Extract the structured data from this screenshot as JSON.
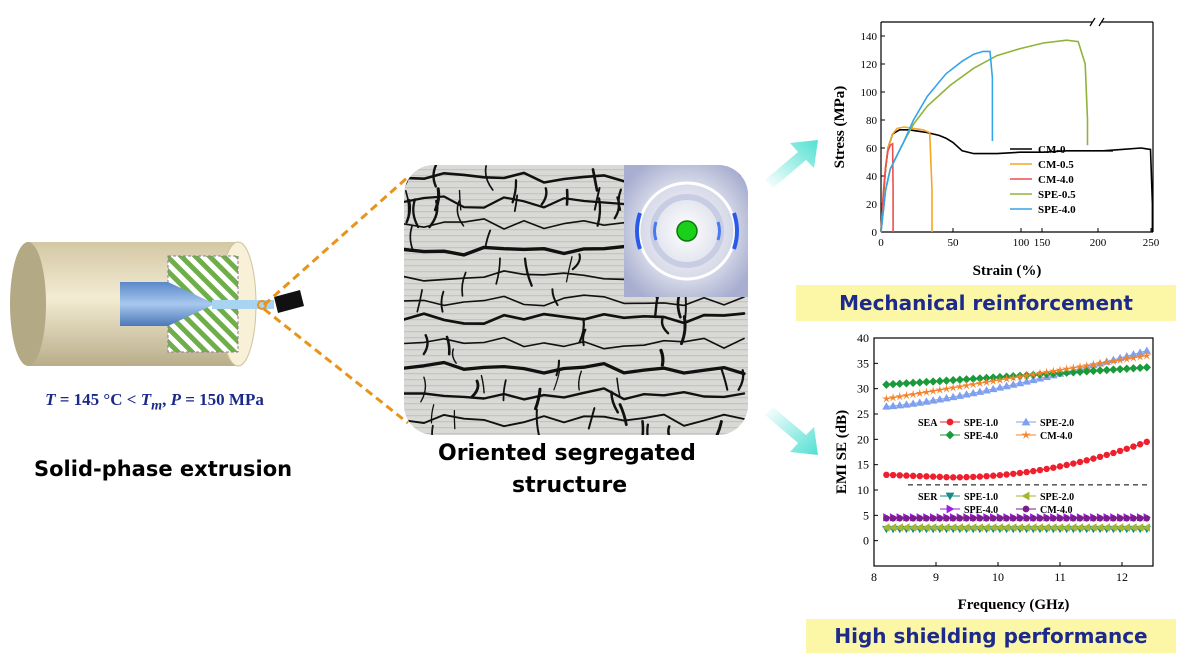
{
  "process": {
    "conditions": {
      "t_symbol": "T",
      "t_text": " = 145 °C < ",
      "tm_symbol": "T",
      "tm_sub": "m",
      "p_symbol": "P",
      "p_text": " = 150 MPa",
      "comma": ", "
    },
    "caption": "Solid-phase extrusion"
  },
  "structure": {
    "caption_line1": "Oriented segregated",
    "caption_line2": "structure"
  },
  "banners": {
    "mechanical": "Mechanical reinforcement",
    "shielding": "High shielding performance"
  },
  "colors": {
    "arrow": "#52e0d2",
    "dashed": "#e8941a",
    "banner_bg": "#fbf7a6",
    "banner_text": "#1d2a8c",
    "cond_text": "#1a2a8a"
  },
  "chart_data": [
    {
      "type": "line",
      "xlabel": "Strain (%)",
      "ylabel": "Stress (MPa)",
      "ylim": [
        0,
        150
      ],
      "xlim": [
        0,
        250
      ],
      "x_break": [
        50,
        200
      ],
      "xticks": [
        "0",
        "50",
        "100",
        "150",
        "200",
        "250"
      ],
      "yticks": [
        "0",
        "20",
        "40",
        "60",
        "80",
        "100",
        "120",
        "140"
      ],
      "legend_position": "bottom-right",
      "series": [
        {
          "name": "CM-0",
          "color": "#000000",
          "x": [
            0,
            1,
            2,
            3,
            5,
            8,
            12,
            16,
            20,
            25,
            28,
            31,
            35,
            40,
            50,
            60,
            70,
            80,
            90,
            95,
            100,
            200,
            210,
            220,
            225,
            226,
            226
          ],
          "y": [
            0,
            25,
            45,
            60,
            70,
            73,
            73,
            72,
            71,
            69,
            67,
            64,
            58,
            56,
            56,
            57,
            57,
            58,
            58,
            58,
            58,
            58,
            59,
            60,
            59,
            20,
            0
          ]
        },
        {
          "name": "CM-0.5",
          "color": "#f5a623",
          "x": [
            0,
            1,
            2,
            3,
            5,
            7,
            10,
            14,
            18,
            21,
            22,
            22
          ],
          "y": [
            0,
            25,
            45,
            60,
            70,
            74,
            75,
            74,
            73,
            71,
            30,
            0
          ]
        },
        {
          "name": "CM-4.0",
          "color": "#ef4e4e",
          "x": [
            0,
            1,
            2,
            3,
            4,
            5,
            5.2,
            5.2
          ],
          "y": [
            0,
            28,
            47,
            58,
            62,
            63,
            30,
            0
          ]
        },
        {
          "name": "SPE-0.5",
          "color": "#8fb33a",
          "x": [
            0,
            2,
            4,
            7,
            10,
            14,
            20,
            30,
            40,
            50,
            60,
            70,
            80,
            85,
            88,
            89,
            89
          ],
          "y": [
            0,
            30,
            45,
            55,
            65,
            77,
            90,
            105,
            117,
            126,
            131,
            135,
            137,
            136,
            120,
            80,
            62
          ]
        },
        {
          "name": "SPE-4.0",
          "color": "#35a4ec",
          "x": [
            0,
            2,
            4,
            7,
            10,
            14,
            20,
            28,
            35,
            40,
            44,
            47,
            48,
            48
          ],
          "y": [
            0,
            30,
            45,
            55,
            65,
            80,
            97,
            113,
            122,
            127,
            129,
            129,
            110,
            65
          ]
        }
      ]
    },
    {
      "type": "line",
      "xlabel": "Frequency (GHz)",
      "ylabel": "EMI SE (dB)",
      "xlim": [
        8,
        12.5
      ],
      "ylim": [
        -5,
        40
      ],
      "xticks": [
        "8",
        "9",
        "10",
        "11",
        "12"
      ],
      "yticks": [
        "0",
        "5",
        "10",
        "15",
        "20",
        "25",
        "30",
        "35",
        "40"
      ],
      "dashed_line_y": 11,
      "se_a_label": "SEA",
      "se_r_label": "SER",
      "series": [
        {
          "name": "SPE-1.0",
          "group": "SEA",
          "color": "#ef1f2d",
          "marker": "circle",
          "x0": 8.2,
          "x1": 12.4,
          "y0": 13,
          "y_min": 12.5,
          "y1": 19.5
        },
        {
          "name": "SPE-2.0",
          "group": "SEA",
          "color": "#7fa0ee",
          "marker": "triangle-up",
          "x0": 8.2,
          "x1": 12.4,
          "y0": 26.5,
          "y1": 37.5
        },
        {
          "name": "SPE-4.0",
          "group": "SEA",
          "color": "#1a9a3a",
          "marker": "diamond",
          "x0": 8.2,
          "x1": 12.4,
          "y0": 30.8,
          "y1": 34.2
        },
        {
          "name": "CM-4.0",
          "group": "SEA",
          "color": "#f5832a",
          "marker": "star",
          "x0": 8.2,
          "x1": 12.4,
          "y0": 28,
          "y1": 36.5
        },
        {
          "name": "SPE-1.0",
          "group": "SER",
          "color": "#1a8a8a",
          "marker": "triangle-down",
          "x0": 8.2,
          "x1": 12.4,
          "y0": 2.3,
          "y1": 2.3
        },
        {
          "name": "SPE-2.0",
          "group": "SER",
          "color": "#a5b530",
          "marker": "triangle-left",
          "x0": 8.2,
          "x1": 12.4,
          "y0": 2.6,
          "y1": 2.6
        },
        {
          "name": "SPE-4.0",
          "group": "SER",
          "color": "#9a1fe0",
          "marker": "triangle-right",
          "x0": 8.2,
          "x1": 12.4,
          "y0": 4.6,
          "y1": 4.6
        },
        {
          "name": "CM-4.0",
          "group": "SER",
          "color": "#7a1f8a",
          "marker": "circle",
          "x0": 8.2,
          "x1": 12.4,
          "y0": 4.4,
          "y1": 4.4
        }
      ]
    }
  ]
}
